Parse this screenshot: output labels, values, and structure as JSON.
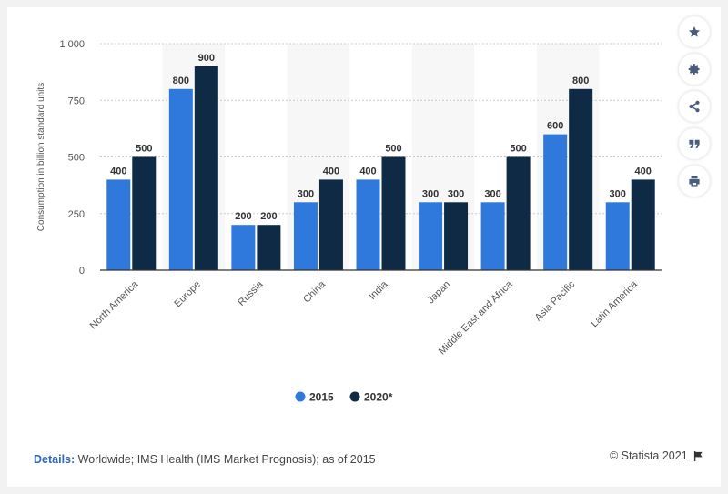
{
  "toolbar": {
    "icons": [
      "star-icon",
      "gear-icon",
      "share-icon",
      "quote-icon",
      "print-icon"
    ]
  },
  "footer": {
    "details_label": "Details:",
    "details_text": "Worldwide; IMS Health (IMS Market Prognosis); as of 2015",
    "credit": "© Statista 2021"
  },
  "chart_data": {
    "type": "bar",
    "ylabel": "Consumption in billion standard units",
    "xlabel": "",
    "ylim": [
      0,
      1000
    ],
    "yticks": [
      0,
      250,
      500,
      750,
      1000
    ],
    "ytick_labels": [
      "0",
      "250",
      "500",
      "750",
      "1 000"
    ],
    "grid": true,
    "legend_position": "bottom-center",
    "categories": [
      "North America",
      "Europe",
      "Russia",
      "China",
      "India",
      "Japan",
      "Middle East and Africa",
      "Asia Pacific",
      "Latin America"
    ],
    "series": [
      {
        "name": "2015",
        "color": "#2f78dc",
        "values": [
          400,
          800,
          200,
          300,
          400,
          300,
          300,
          600,
          300
        ]
      },
      {
        "name": "2020*",
        "color": "#0f2a45",
        "values": [
          500,
          900,
          200,
          400,
          500,
          300,
          500,
          800,
          400
        ]
      }
    ]
  }
}
